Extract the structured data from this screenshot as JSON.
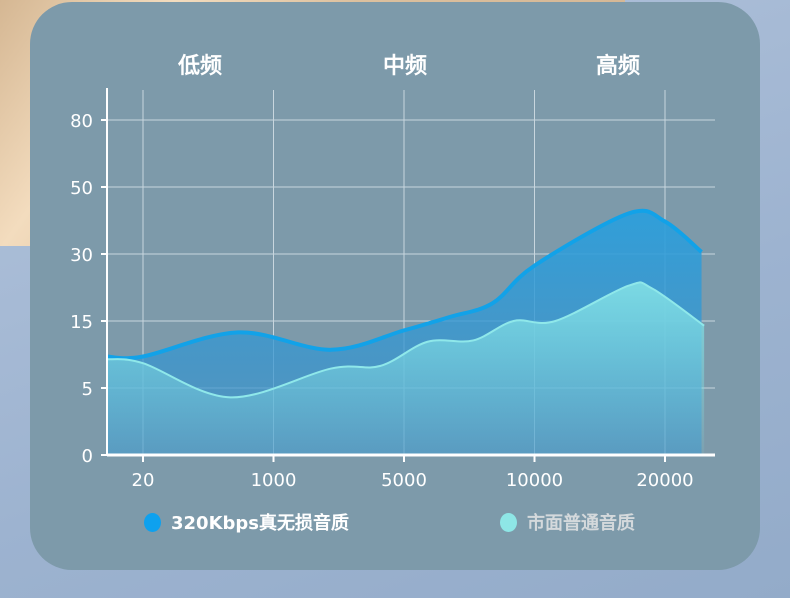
{
  "bands": [
    "低频",
    "中频",
    "高频"
  ],
  "chart_data": {
    "type": "area",
    "title": "",
    "xlabel": "",
    "ylabel": "",
    "x_ticks": [
      "20",
      "1000",
      "5000",
      "10000",
      "20000"
    ],
    "y_ticks": [
      0,
      5,
      15,
      30,
      50,
      80
    ],
    "grid": true,
    "legend_position": "bottom",
    "x_note": "x given as tick index (0=20 … 4=20000)",
    "series": [
      {
        "name": "320Kbps真无损音质",
        "color": "#10a0ea",
        "x": [
          -0.28,
          0,
          0.73,
          1.44,
          2,
          2.35,
          2.68,
          3,
          3.72,
          4,
          4.28
        ],
        "y": [
          9.7,
          9.7,
          13.3,
          10.7,
          13.6,
          15.9,
          19,
          27.4,
          42.1,
          39.7,
          30.6
        ]
      },
      {
        "name": "市面普通音质",
        "color": "#8ee6e6",
        "x": [
          -0.28,
          0,
          0.67,
          1.44,
          1.82,
          2.18,
          2.53,
          2.84,
          3.16,
          3.72,
          3.9,
          4.3
        ],
        "y": [
          9.3,
          8.7,
          4.3,
          7.9,
          8.3,
          11.9,
          12.1,
          15,
          15,
          22.9,
          22.3,
          14.3
        ]
      }
    ]
  }
}
